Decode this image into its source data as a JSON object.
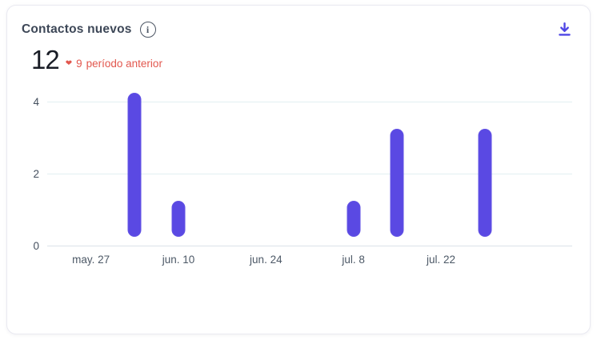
{
  "header": {
    "title": "Contactos nuevos"
  },
  "icons": {
    "info": "i",
    "download": "download-icon",
    "trend_heart": "❤"
  },
  "stat": {
    "value": "12",
    "comparison_value": "9",
    "comparison_label": "período anterior"
  },
  "colors": {
    "bar": "#5a49e3",
    "grid": "#e3eff1",
    "axis": "#dbe1e8",
    "accent_download": "#4f46e5",
    "trend": "#e2574e"
  },
  "chart_data": {
    "type": "bar",
    "title": "Contactos nuevos",
    "xlabel": "",
    "ylabel": "",
    "total": 12,
    "previous_period": 9,
    "x_domain_days": [
      -7,
      77
    ],
    "ylim": [
      0,
      4.33
    ],
    "y_ticks": [
      0,
      2,
      4
    ],
    "x_ticks": [
      {
        "label": "may. 27",
        "day": 0
      },
      {
        "label": "jun. 10",
        "day": 14
      },
      {
        "label": "jun. 24",
        "day": 28
      },
      {
        "label": "jul. 8",
        "day": 42
      },
      {
        "label": "jul. 22",
        "day": 56
      }
    ],
    "bars": [
      {
        "day": 7,
        "value": 4
      },
      {
        "day": 14,
        "value": 1
      },
      {
        "day": 42,
        "value": 1
      },
      {
        "day": 49,
        "value": 3
      },
      {
        "day": 63,
        "value": 3
      }
    ],
    "legend": [],
    "grid": "horizontal-only"
  }
}
